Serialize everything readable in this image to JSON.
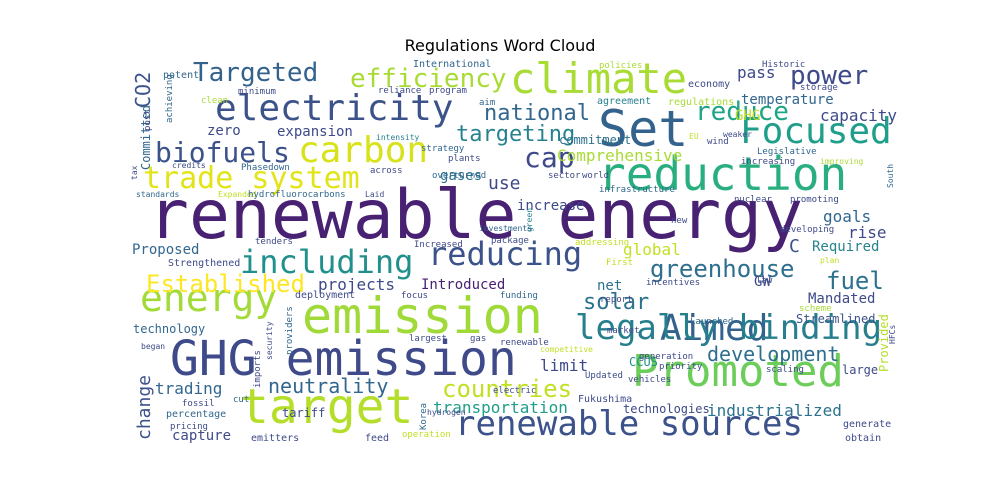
{
  "chart_data": {
    "type": "wordcloud",
    "title": "Regulations Word Cloud",
    "words": [
      {
        "text": "renewable energy",
        "color": "#482173",
        "rotate": false
      },
      {
        "text": "emission",
        "color": "#a0da39",
        "rotate": false
      },
      {
        "text": "GHG emission",
        "color": "#3e4a89",
        "rotate": false
      },
      {
        "text": "Set",
        "color": "#33638d",
        "rotate": false
      },
      {
        "text": "reduction",
        "color": "#29af7f",
        "rotate": false
      },
      {
        "text": "target",
        "color": "#b5de2b",
        "rotate": false
      },
      {
        "text": "Promoted",
        "color": "#6ccd5a",
        "rotate": false
      },
      {
        "text": "climate",
        "color": "#a8db34",
        "rotate": false
      },
      {
        "text": "renewable sources",
        "color": "#3b528b",
        "rotate": false
      },
      {
        "text": "Focused",
        "color": "#1f9e89",
        "rotate": false
      },
      {
        "text": "Aimed",
        "color": "#33638d",
        "rotate": false
      },
      {
        "text": "legally binding",
        "color": "#277f8e",
        "rotate": false
      },
      {
        "text": "energy",
        "color": "#a2da37",
        "rotate": false
      },
      {
        "text": "electricity",
        "color": "#3b528b",
        "rotate": false
      },
      {
        "text": "carbon",
        "color": "#d8e219",
        "rotate": false
      },
      {
        "text": "reducing",
        "color": "#3b528b",
        "rotate": false
      },
      {
        "text": "including",
        "color": "#21908d",
        "rotate": false
      },
      {
        "text": "trade system",
        "color": "#e2e418",
        "rotate": false
      },
      {
        "text": "biofuels",
        "color": "#3b528b",
        "rotate": false
      },
      {
        "text": "cap",
        "color": "#3e4a89",
        "rotate": false
      },
      {
        "text": "reduce",
        "color": "#20a486",
        "rotate": false
      },
      {
        "text": "efficiency",
        "color": "#a8db34",
        "rotate": false
      },
      {
        "text": "Targeted",
        "color": "#33638d",
        "rotate": false
      },
      {
        "text": "power",
        "color": "#3e4a89",
        "rotate": false
      },
      {
        "text": "Established",
        "color": "#fde725",
        "rotate": false
      },
      {
        "text": "greenhouse",
        "color": "#2e6e8e",
        "rotate": false
      },
      {
        "text": "fuel",
        "color": "#2c728e",
        "rotate": false
      },
      {
        "text": "countries",
        "color": "#c2df23",
        "rotate": false
      },
      {
        "text": "national",
        "color": "#31678e",
        "rotate": false
      },
      {
        "text": "targeting",
        "color": "#26828e",
        "rotate": false
      },
      {
        "text": "solar",
        "color": "#2c728e",
        "rotate": false
      },
      {
        "text": "development",
        "color": "#2e6e8e",
        "rotate": false
      },
      {
        "text": "neutrality",
        "color": "#31678e",
        "rotate": false
      },
      {
        "text": "CO2",
        "color": "#3b528b",
        "rotate": true
      },
      {
        "text": "use",
        "color": "#3e4a89",
        "rotate": false
      },
      {
        "text": "change",
        "color": "#3b528b",
        "rotate": true
      },
      {
        "text": "transportation",
        "color": "#1f9e89",
        "rotate": false
      },
      {
        "text": "industrialized",
        "color": "#2c728e",
        "rotate": false
      },
      {
        "text": "Comprehensive",
        "color": "#a8db34",
        "rotate": false
      },
      {
        "text": "capacity",
        "color": "#3e4a89",
        "rotate": false
      },
      {
        "text": "temperature",
        "color": "#31678e",
        "rotate": false
      },
      {
        "text": "projects",
        "color": "#3e4a89",
        "rotate": false
      },
      {
        "text": "Introduced",
        "color": "#482173",
        "rotate": false
      },
      {
        "text": "increase",
        "color": "#3e4a89",
        "rotate": false
      },
      {
        "text": "gases",
        "color": "#2c728e",
        "rotate": false
      },
      {
        "text": "global",
        "color": "#c2df23",
        "rotate": false
      },
      {
        "text": "goals",
        "color": "#31678e",
        "rotate": false
      },
      {
        "text": "rise",
        "color": "#3e4a89",
        "rotate": false
      },
      {
        "text": "Required",
        "color": "#26828e",
        "rotate": false
      },
      {
        "text": "Mandated",
        "color": "#3e4a89",
        "rotate": false
      },
      {
        "text": "Streamlined",
        "color": "#3b528b",
        "rotate": false
      },
      {
        "text": "limit",
        "color": "#3e4a89",
        "rotate": false
      },
      {
        "text": "net",
        "color": "#2c728e",
        "rotate": false
      },
      {
        "text": "expansion",
        "color": "#3e4a89",
        "rotate": false
      },
      {
        "text": "zero",
        "color": "#3e4a89",
        "rotate": false
      },
      {
        "text": "trading",
        "color": "#31678e",
        "rotate": false
      },
      {
        "text": "capture",
        "color": "#3e4a89",
        "rotate": false
      },
      {
        "text": "technology",
        "color": "#31678e",
        "rotate": false
      },
      {
        "text": "technologies",
        "color": "#3e4a89",
        "rotate": false
      },
      {
        "text": "Proposed",
        "color": "#31678e",
        "rotate": false
      },
      {
        "text": "Committed",
        "color": "#31678e",
        "rotate": true
      },
      {
        "text": "Provided",
        "color": "#b5de2b",
        "rotate": true
      },
      {
        "text": "pass",
        "color": "#3e4a89",
        "rotate": false
      },
      {
        "text": "GHG",
        "color": "#c2df23",
        "rotate": false
      },
      {
        "text": "GW",
        "color": "#3e4a89",
        "rotate": false
      },
      {
        "text": "C",
        "color": "#3b528b",
        "rotate": false
      },
      {
        "text": "CCUS",
        "color": "#21908d",
        "rotate": false
      },
      {
        "text": "commitment",
        "color": "#2c728e",
        "rotate": false
      },
      {
        "text": "large",
        "color": "#3e4a89",
        "rotate": false
      },
      {
        "text": "generate",
        "color": "#3e4a89",
        "rotate": false
      },
      {
        "text": "obtain",
        "color": "#3e4a89",
        "rotate": false
      },
      {
        "text": "tariff",
        "color": "#3e4a89",
        "rotate": false
      },
      {
        "text": "percentage",
        "color": "#31678e",
        "rotate": false
      },
      {
        "text": "emitters",
        "color": "#3e4a89",
        "rotate": false
      },
      {
        "text": "feed",
        "color": "#3e4a89",
        "rotate": false
      },
      {
        "text": "International",
        "color": "#31678e",
        "rotate": false
      },
      {
        "text": "Historic",
        "color": "#3e4a89",
        "rotate": false
      },
      {
        "text": "policies",
        "color": "#a8db34",
        "rotate": false
      },
      {
        "text": "economy",
        "color": "#3e4a89",
        "rotate": false
      },
      {
        "text": "storage",
        "color": "#3e4a89",
        "rotate": false
      },
      {
        "text": "agreement",
        "color": "#26828e",
        "rotate": false
      },
      {
        "text": "regulations",
        "color": "#a8db34",
        "rotate": false
      },
      {
        "text": "minimum",
        "color": "#3e4a89",
        "rotate": false
      },
      {
        "text": "reliance",
        "color": "#3e4a89",
        "rotate": false
      },
      {
        "text": "program",
        "color": "#3e4a89",
        "rotate": false
      },
      {
        "text": "aim",
        "color": "#31678e",
        "rotate": false
      },
      {
        "text": "intensity",
        "color": "#26828e",
        "rotate": false
      },
      {
        "text": "strategy",
        "color": "#31678e",
        "rotate": false
      },
      {
        "text": "plants",
        "color": "#3e4a89",
        "rotate": false
      },
      {
        "text": "across",
        "color": "#3e4a89",
        "rotate": false
      },
      {
        "text": "overturned",
        "color": "#31678e",
        "rotate": false
      },
      {
        "text": "sector",
        "color": "#3e4a89",
        "rotate": false
      },
      {
        "text": "world",
        "color": "#3e4a89",
        "rotate": false
      },
      {
        "text": "infrastructure",
        "color": "#31678e",
        "rotate": false
      },
      {
        "text": "nuclear",
        "color": "#3e4a89",
        "rotate": false
      },
      {
        "text": "promoting",
        "color": "#3e4a89",
        "rotate": false
      },
      {
        "text": "EU",
        "color": "#c2df23",
        "rotate": false
      },
      {
        "text": "wind",
        "color": "#3e4a89",
        "rotate": false
      },
      {
        "text": "weaker",
        "color": "#3e4a89",
        "rotate": false
      },
      {
        "text": "Legislative",
        "color": "#31678e",
        "rotate": false
      },
      {
        "text": "increasing",
        "color": "#3e4a89",
        "rotate": false
      },
      {
        "text": "improving",
        "color": "#a8db34",
        "rotate": false
      },
      {
        "text": "potent",
        "color": "#31678e",
        "rotate": false
      },
      {
        "text": "clean",
        "color": "#a8db34",
        "rotate": false
      },
      {
        "text": "post",
        "color": "#3e4a89",
        "rotate": true
      },
      {
        "text": "achieving",
        "color": "#31678e",
        "rotate": true
      },
      {
        "text": "tax",
        "color": "#3e4a89",
        "rotate": true
      },
      {
        "text": "credits",
        "color": "#3e4a89",
        "rotate": false
      },
      {
        "text": "Phasedown",
        "color": "#31678e",
        "rotate": false
      },
      {
        "text": "standards",
        "color": "#31678e",
        "rotate": false
      },
      {
        "text": "Expanded",
        "color": "#c2df23",
        "rotate": false
      },
      {
        "text": "hydrofluorocarbons",
        "color": "#31678e",
        "rotate": false
      },
      {
        "text": "Laid",
        "color": "#3e4a89",
        "rotate": false
      },
      {
        "text": "green",
        "color": "#26828e",
        "rotate": true
      },
      {
        "text": "investments",
        "color": "#31678e",
        "rotate": false
      },
      {
        "text": "package",
        "color": "#3e4a89",
        "rotate": false
      },
      {
        "text": "addressing",
        "color": "#c2df23",
        "rotate": false
      },
      {
        "text": "new",
        "color": "#3e4a89",
        "rotate": false
      },
      {
        "text": "developing",
        "color": "#3e4a89",
        "rotate": false
      },
      {
        "text": "plan",
        "color": "#c2df23",
        "rotate": false
      },
      {
        "text": "South",
        "color": "#31678e",
        "rotate": true
      },
      {
        "text": "tenders",
        "color": "#3e4a89",
        "rotate": false
      },
      {
        "text": "Increased",
        "color": "#3e4a89",
        "rotate": false
      },
      {
        "text": "Strengthened",
        "color": "#3e4a89",
        "rotate": false
      },
      {
        "text": "hydrogen",
        "color": "#3e4a89",
        "rotate": false
      },
      {
        "text": "First",
        "color": "#c2df23",
        "rotate": false
      },
      {
        "text": "incentives",
        "color": "#3e4a89",
        "rotate": false
      },
      {
        "text": "law",
        "color": "#3e4a89",
        "rotate": false
      },
      {
        "text": "funding",
        "color": "#31678e",
        "rotate": false
      },
      {
        "text": "report",
        "color": "#3e4a89",
        "rotate": false
      },
      {
        "text": "deployment",
        "color": "#3e4a89",
        "rotate": false
      },
      {
        "text": "focus",
        "color": "#3e4a89",
        "rotate": false
      },
      {
        "text": "scheme",
        "color": "#a8db34",
        "rotate": false
      },
      {
        "text": "Launched",
        "color": "#31678e",
        "rotate": false
      },
      {
        "text": "security",
        "color": "#3e4a89",
        "rotate": true
      },
      {
        "text": "providers",
        "color": "#31678e",
        "rotate": true
      },
      {
        "text": "began",
        "color": "#3e4a89",
        "rotate": false
      },
      {
        "text": "largest",
        "color": "#3e4a89",
        "rotate": false
      },
      {
        "text": "gas",
        "color": "#3e4a89",
        "rotate": false
      },
      {
        "text": "renewable",
        "color": "#3e4a89",
        "rotate": false
      },
      {
        "text": "competitive",
        "color": "#c2df23",
        "rotate": false
      },
      {
        "text": "generation",
        "color": "#3e4a89",
        "rotate": false
      },
      {
        "text": "HFCs",
        "color": "#3e4a89",
        "rotate": true
      },
      {
        "text": "imports",
        "color": "#3e4a89",
        "rotate": true
      },
      {
        "text": "cut",
        "color": "#31678e",
        "rotate": false
      },
      {
        "text": "pricing",
        "color": "#3e4a89",
        "rotate": false
      },
      {
        "text": "fossil",
        "color": "#3e4a89",
        "rotate": false
      },
      {
        "text": "Fukushima",
        "color": "#3e4a89",
        "rotate": false
      },
      {
        "text": "Korea",
        "color": "#31678e",
        "rotate": true
      },
      {
        "text": "operation",
        "color": "#c2df23",
        "rotate": false
      },
      {
        "text": "Updated",
        "color": "#3e4a89",
        "rotate": false
      },
      {
        "text": "priority",
        "color": "#3e4a89",
        "rotate": false
      },
      {
        "text": "scaling",
        "color": "#3e4a89",
        "rotate": false
      },
      {
        "text": "vehicles",
        "color": "#3e4a89",
        "rotate": false
      },
      {
        "text": "electric",
        "color": "#3e4a89",
        "rotate": false
      },
      {
        "text": "market",
        "color": "#3e4a89",
        "rotate": false
      }
    ]
  }
}
